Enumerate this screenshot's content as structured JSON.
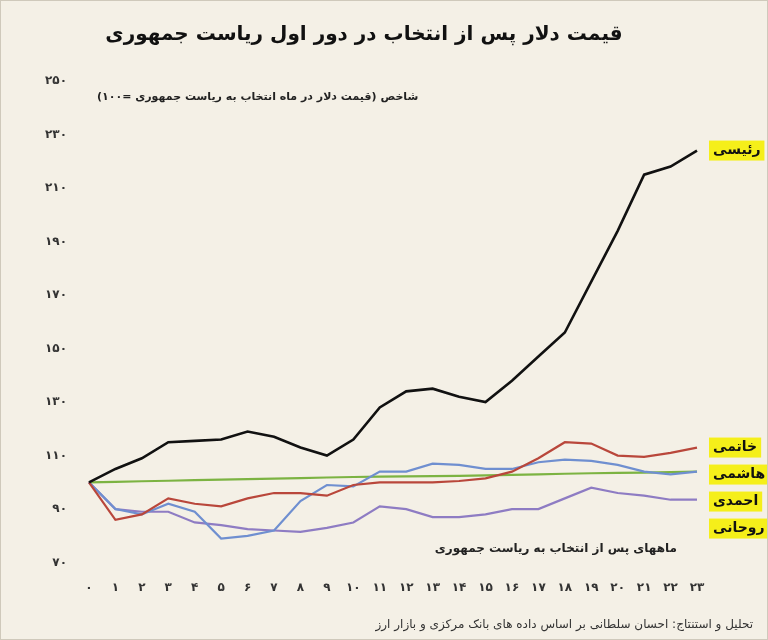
{
  "chart_data": {
    "type": "line",
    "title": "قیمت دلار پس از انتخاب در دور اول ریاست جمهوری",
    "y_axis_label": "شاخص (قیمت دلار در ماه انتخاب به ریاست جمهوری =۱۰۰)",
    "x_axis_label": "ماههای پس از انتخاب به ریاست جمهوری",
    "source": "تحلیل و استنتاج: احسان سلطانی بر اساس داده های بانک مرکزی و بازار ارز",
    "categories": [
      "۰",
      "۱",
      "۲",
      "۳",
      "۴",
      "۵",
      "۶",
      "۷",
      "۸",
      "۹",
      "۱۰",
      "۱۱",
      "۱۲",
      "۱۳",
      "۱۴",
      "۱۵",
      "۱۶",
      "۱۷",
      "۱۸",
      "۱۹",
      "۲۰",
      "۲۱",
      "۲۲",
      "۲۳"
    ],
    "series": [
      {
        "name": "رئیسی",
        "color": "#111111",
        "values": [
          100,
          105,
          109,
          115,
          115.5,
          116,
          119,
          117,
          113,
          110,
          116,
          128,
          134,
          135,
          132,
          130,
          138,
          147,
          156,
          175,
          194,
          215,
          218,
          224
        ]
      },
      {
        "name": "خاتمی",
        "color": "#b9473b",
        "values": [
          100,
          86,
          88,
          94,
          92,
          91,
          94,
          96,
          96,
          95,
          99,
          100,
          100,
          100,
          100.5,
          101.5,
          104,
          109,
          115,
          114.5,
          110,
          109.5,
          111,
          113
        ]
      },
      {
        "name": "هاشمی",
        "color": "#6f8fd0",
        "values": [
          100,
          90,
          88,
          92,
          89,
          79,
          80,
          82,
          93,
          99,
          98.5,
          104,
          104,
          107,
          106.5,
          105,
          105,
          107.5,
          108.5,
          108,
          106.5,
          104,
          103,
          104
        ]
      },
      {
        "name": "احمدی",
        "color": "#7cb342",
        "values": [
          100,
          100.2,
          100.4,
          100.6,
          100.8,
          101,
          101.2,
          101.4,
          101.6,
          101.8,
          102,
          102.1,
          102.2,
          102.3,
          102.4,
          102.6,
          102.8,
          103,
          103.2,
          103.4,
          103.5,
          103.6,
          103.8,
          104
        ]
      },
      {
        "name": "روحانی",
        "color": "#8e7cc3",
        "values": [
          100,
          90,
          89,
          89,
          85,
          84,
          82.5,
          82,
          81.5,
          83,
          85,
          91,
          90,
          87,
          87,
          88,
          90,
          90,
          94,
          98,
          96,
          95,
          93.5,
          93.5
        ]
      }
    ],
    "ylim": [
      70,
      250
    ],
    "yticks": [
      {
        "value": 70,
        "label": "۷۰"
      },
      {
        "value": 90,
        "label": "۹۰"
      },
      {
        "value": 110,
        "label": "۱۱۰"
      },
      {
        "value": 130,
        "label": "۱۳۰"
      },
      {
        "value": 150,
        "label": "۱۵۰"
      },
      {
        "value": 170,
        "label": "۱۷۰"
      },
      {
        "value": 190,
        "label": "۱۹۰"
      },
      {
        "value": 210,
        "label": "۲۱۰"
      },
      {
        "value": 230,
        "label": "۲۳۰"
      },
      {
        "value": 250,
        "label": "۲۵۰"
      }
    ],
    "grid": false,
    "marker": "none",
    "line_style": "solid"
  }
}
